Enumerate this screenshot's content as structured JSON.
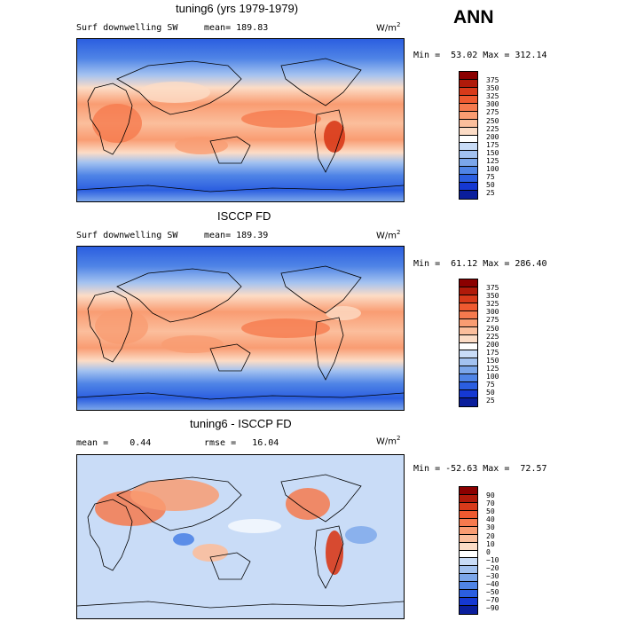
{
  "season": "ANN",
  "panels": [
    {
      "title": "tuning6 (yrs 1979-1979)",
      "left_label": "Surf downwelling SW",
      "stat": "mean= 189.83",
      "units": "W/m",
      "units_exp": "2",
      "minmax": "Min =  53.02 Max = 312.14"
    },
    {
      "title": "ISCCP FD",
      "left_label": "Surf downwelling SW",
      "stat": "mean= 189.39",
      "units": "W/m",
      "units_exp": "2",
      "minmax": "Min =  61.12 Max = 286.40"
    },
    {
      "title": "tuning6 - ISCCP FD",
      "left_label": "mean =    0.44",
      "stat": "rmse =   16.04",
      "units": "W/m",
      "units_exp": "2",
      "minmax": "Min = -52.63 Max =  72.57"
    }
  ],
  "colorbar_abs": {
    "labels": [
      "375",
      "350",
      "325",
      "300",
      "275",
      "250",
      "225",
      "200",
      "175",
      "150",
      "125",
      "100",
      "75",
      "50",
      "25"
    ],
    "colors": [
      "#8b0000",
      "#b01a0a",
      "#d83a1a",
      "#ef5a30",
      "#f67a4e",
      "#f99c72",
      "#fbbe9c",
      "#fcdcc6",
      "#ffffff",
      "#c9dcf7",
      "#a3c2f0",
      "#7ba6ea",
      "#4f84e6",
      "#2b5ee0",
      "#1538d2",
      "#0a1e9c"
    ]
  },
  "colorbar_diff": {
    "labels": [
      "90",
      "70",
      "50",
      "40",
      "30",
      "20",
      "10",
      "0",
      "−10",
      "−20",
      "−30",
      "−40",
      "−50",
      "−70",
      "−90"
    ],
    "colors": [
      "#8b0000",
      "#b01a0a",
      "#d83a1a",
      "#ef5a30",
      "#f67a4e",
      "#f99c72",
      "#fbbe9c",
      "#fcdcc6",
      "#ffffff",
      "#c9dcf7",
      "#a3c2f0",
      "#7ba6ea",
      "#4f84e6",
      "#2b5ee0",
      "#1538d2",
      "#0a1e9c"
    ]
  }
}
